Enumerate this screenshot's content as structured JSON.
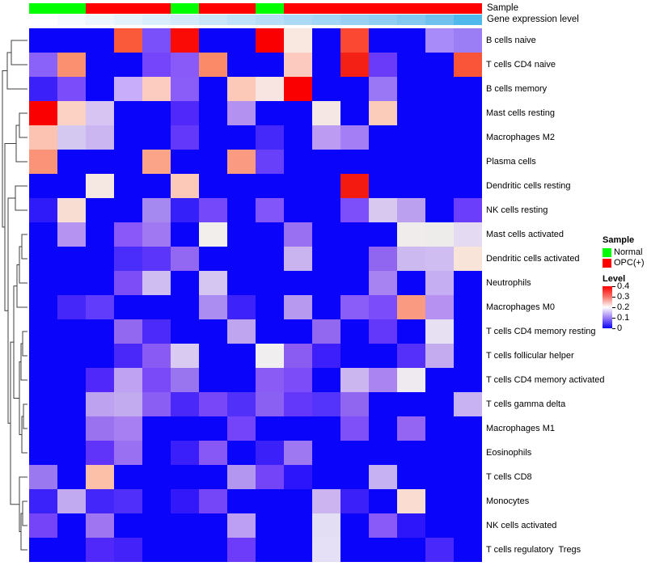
{
  "annotations": {
    "sample_label": "Sample",
    "expression_label": "Gene expression level",
    "sample_colors_by_column": [
      "#00FE00",
      "#00FE00",
      "#FE0000",
      "#FE0000",
      "#FE0000",
      "#00FE00",
      "#FE0000",
      "#FE0000",
      "#00FE00",
      "#FE0000",
      "#FE0000",
      "#FE0000",
      "#FE0000",
      "#FE0000",
      "#FE0000",
      "#FE0000"
    ],
    "expression_colors_by_column": [
      "#FCFEFF",
      "#F5FAFE",
      "#EDF6FD",
      "#E4F2FC",
      "#DBEEFB",
      "#D2EAFA",
      "#C9E6F9",
      "#C0E2F8",
      "#B6DEF7",
      "#ACDAF6",
      "#A3D6F4",
      "#99D1F3",
      "#8FCDF2",
      "#82C8F0",
      "#70C1EE",
      "#4FB9EC"
    ]
  },
  "legend": {
    "sample_title": "Sample",
    "sample_items": [
      {
        "label": "Normal",
        "color": "#00FE00"
      },
      {
        "label": "OPC(+)",
        "color": "#FE0000"
      }
    ],
    "level_title": "Level",
    "level_ticks": [
      "0.4",
      "0.3",
      "0.2",
      "0.1",
      "0"
    ],
    "level_gradient_top_to_bottom": [
      "#FF0000",
      "#F9746A",
      "#FFFFFF",
      "#9B7DF5",
      "#0A04FA"
    ]
  },
  "chart_data": {
    "type": "heatmap",
    "value_name": "Level",
    "value_range": [
      0,
      0.4
    ],
    "colormap": "blue (0) → white (0.2) → red (0.4)",
    "n_columns": 16,
    "column_sample_group": [
      "Normal",
      "Normal",
      "OPC(+)",
      "OPC(+)",
      "OPC(+)",
      "Normal",
      "OPC(+)",
      "OPC(+)",
      "Normal",
      "OPC(+)",
      "OPC(+)",
      "OPC(+)",
      "OPC(+)",
      "OPC(+)",
      "OPC(+)",
      "OPC(+)"
    ],
    "rows": [
      "B cells naive",
      "T cells CD4 naive",
      "B cells memory",
      "Mast cells resting",
      "Macrophages M2",
      "Plasma cells",
      "Dendritic cells resting",
      "NK cells resting",
      "Mast cells activated",
      "Dendritic cells activated",
      "Neutrophils",
      "Macrophages M0",
      "T cells CD4 memory resting",
      "T cells follicular helper",
      "T cells CD4 memory activated",
      "T cells gamma delta",
      "Macrophages M1",
      "Eosinophils",
      "T cells CD8",
      "Monocytes",
      "NK cells activated",
      "T cells regulatory  Tregs"
    ],
    "values": [
      [
        0,
        0,
        0,
        0.33,
        0.1,
        0.39,
        0,
        0,
        0.4,
        0.21,
        0,
        0.33,
        0,
        0,
        0.13,
        0.12
      ],
      [
        0.11,
        0.29,
        0,
        0,
        0.09,
        0.11,
        0.29,
        0,
        0,
        0.25,
        0,
        0.37,
        0.08,
        0,
        0,
        0.32
      ],
      [
        0.04,
        0.09,
        0,
        0.16,
        0.24,
        0.11,
        0,
        0.25,
        0.22,
        0.4,
        0,
        0,
        0.12,
        0,
        0,
        0
      ],
      [
        0.4,
        0.24,
        0.17,
        0,
        0,
        0.06,
        0,
        0.14,
        0,
        0,
        0.21,
        0,
        0.24,
        0,
        0,
        0
      ],
      [
        0.25,
        0.17,
        0.16,
        0,
        0,
        0.08,
        0,
        0,
        0.05,
        0,
        0.15,
        0.13,
        0,
        0,
        0,
        0
      ],
      [
        0.29,
        0,
        0,
        0,
        0.28,
        0,
        0,
        0.28,
        0.08,
        0,
        0,
        0,
        0,
        0,
        0,
        0
      ],
      [
        0,
        0,
        0.21,
        0,
        0,
        0.25,
        0,
        0,
        0,
        0,
        0,
        0.38,
        0,
        0,
        0,
        0
      ],
      [
        0.04,
        0.23,
        0,
        0,
        0.13,
        0.04,
        0.09,
        0,
        0.1,
        0,
        0,
        0.1,
        0.17,
        0.15,
        0,
        0.08
      ],
      [
        0,
        0.14,
        0,
        0.11,
        0.12,
        0,
        0.2,
        0,
        0,
        0.12,
        0,
        0,
        0,
        0.2,
        0.2,
        0.18
      ],
      [
        0,
        0,
        0,
        0.06,
        0.07,
        0.12,
        0,
        0,
        0,
        0.16,
        0,
        0,
        0.11,
        0.16,
        0.16,
        0.22
      ],
      [
        0,
        0,
        0,
        0.1,
        0.16,
        0,
        0.17,
        0,
        0,
        0,
        0,
        0,
        0.13,
        0,
        0.15,
        0
      ],
      [
        0,
        0.05,
        0.08,
        0,
        0,
        0,
        0.14,
        0.05,
        0,
        0.14,
        0,
        0.11,
        0.1,
        0.28,
        0.14,
        0
      ],
      [
        0,
        0,
        0,
        0.12,
        0.06,
        0,
        0,
        0.15,
        0,
        0,
        0.12,
        0,
        0.08,
        0,
        0.19,
        0
      ],
      [
        0,
        0,
        0,
        0.06,
        0.11,
        0.17,
        0,
        0,
        0.2,
        0.11,
        0.05,
        0,
        0,
        0.07,
        0.15,
        0
      ],
      [
        0,
        0,
        0.06,
        0.15,
        0.1,
        0.12,
        0,
        0,
        0.11,
        0.1,
        0,
        0.16,
        0.13,
        0.19,
        0,
        0
      ],
      [
        0,
        0,
        0.15,
        0.15,
        0.11,
        0.06,
        0.09,
        0.06,
        0.11,
        0.08,
        0.07,
        0.11,
        0,
        0,
        0,
        0.16
      ],
      [
        0,
        0,
        0.12,
        0.13,
        0,
        0,
        0,
        0.09,
        0,
        0,
        0,
        0.1,
        0,
        0.12,
        0,
        0
      ],
      [
        0,
        0,
        0.08,
        0.12,
        0,
        0.05,
        0.11,
        0,
        0.05,
        0.12,
        0,
        0,
        0,
        0,
        0,
        0
      ],
      [
        0.12,
        0,
        0.25,
        0,
        0,
        0,
        0,
        0.14,
        0.09,
        0.04,
        0,
        0,
        0.15,
        0,
        0,
        0
      ],
      [
        0.05,
        0.15,
        0.05,
        0.06,
        0,
        0.04,
        0.09,
        0,
        0,
        0,
        0.16,
        0.05,
        0,
        0.23,
        0,
        0
      ],
      [
        0.09,
        0,
        0.13,
        0,
        0,
        0,
        0,
        0.15,
        0,
        0,
        0.19,
        0,
        0.11,
        0.04,
        0,
        0
      ],
      [
        0,
        0,
        0.06,
        0.05,
        0,
        0,
        0,
        0.08,
        0,
        0,
        0.19,
        0,
        0,
        0,
        0.06,
        0
      ]
    ],
    "cell_colors": [
      [
        "#0A04FA",
        "#0A04FA",
        "#0A04FA",
        "#FB5A3A",
        "#7A50FA",
        "#FB0B06",
        "#0A04FA",
        "#0A04FA",
        "#FB0000",
        "#F8E8E0",
        "#0A04FA",
        "#FB4833",
        "#0A04FA",
        "#0A04FA",
        "#A88AF8",
        "#9B7DF5"
      ],
      [
        "#8A62FA",
        "#FA9070",
        "#0A04FA",
        "#0A04FA",
        "#7445FA",
        "#8A5AF8",
        "#FA8A68",
        "#0A04FA",
        "#0A04FA",
        "#FCCABE",
        "#0A04FA",
        "#F52015",
        "#6A3CFA",
        "#0A04FA",
        "#0A04FA",
        "#FA5538"
      ],
      [
        "#3C20FA",
        "#7A4CFA",
        "#0A04FA",
        "#C8AEFA",
        "#FCCCC0",
        "#8A5CF8",
        "#0A04FA",
        "#FCC8B8",
        "#F8E4E0",
        "#FB0000",
        "#0A04FA",
        "#0A04FA",
        "#9A78F5",
        "#0A04FA",
        "#0A04FA",
        "#0A04FA"
      ],
      [
        "#FB0000",
        "#FCD2C4",
        "#D8C4F2",
        "#0A04FA",
        "#0A04FA",
        "#5028FA",
        "#0A04FA",
        "#B291F0",
        "#0A04FA",
        "#0A04FA",
        "#F5E8E4",
        "#0A04FA",
        "#FCCCBA",
        "#0A04FA",
        "#0A04FA",
        "#0A04FA"
      ],
      [
        "#FCC2B2",
        "#D4C8F0",
        "#CCB6F2",
        "#0A04FA",
        "#0A04FA",
        "#6338FA",
        "#0A04FA",
        "#0A04FA",
        "#4528FA",
        "#0A04FA",
        "#BB9CF2",
        "#A37EF5",
        "#0A04FA",
        "#0A04FA",
        "#0A04FA",
        "#0A04FA"
      ],
      [
        "#FA9378",
        "#0A04FA",
        "#0A04FA",
        "#0A04FA",
        "#FCA488",
        "#0A04FA",
        "#0A04FA",
        "#FA9A80",
        "#6940FA",
        "#0A04FA",
        "#0A04FA",
        "#0A04FA",
        "#0A04FA",
        "#0A04FA",
        "#0A04FA",
        "#0A04FA"
      ],
      [
        "#0A04FA",
        "#0A04FA",
        "#F5E8E2",
        "#0A04FA",
        "#0A04FA",
        "#FCC9B8",
        "#0A04FA",
        "#0A04FA",
        "#0A04FA",
        "#0A04FA",
        "#0A04FA",
        "#F51A10",
        "#0A04FA",
        "#0A04FA",
        "#0A04FA",
        "#0A04FA"
      ],
      [
        "#2F1AFA",
        "#F8DDD2",
        "#0A04FA",
        "#0A04FA",
        "#A588F0",
        "#3520FA",
        "#7548FA",
        "#0A04FA",
        "#8255FA",
        "#0A04FA",
        "#0A04FA",
        "#7C4FFA",
        "#D8C8F0",
        "#BBA0F0",
        "#0A04FA",
        "#6A3EFA"
      ],
      [
        "#0A04FA",
        "#B494F0",
        "#0A04FA",
        "#8A58F8",
        "#A078F2",
        "#0A04FA",
        "#F2EEEC",
        "#0A04FA",
        "#0A04FA",
        "#9A70F2",
        "#0A04FA",
        "#0A04FA",
        "#0A04FA",
        "#EFECEB",
        "#EEECEB",
        "#E4DAF2"
      ],
      [
        "#0A04FA",
        "#0A04FA",
        "#0A04FA",
        "#4A2DFA",
        "#5C35FA",
        "#9268F2",
        "#0A04FA",
        "#0A04FA",
        "#0A04FA",
        "#C9B4F0",
        "#0A04FA",
        "#0A04FA",
        "#9065F0",
        "#CCB9F0",
        "#CFBCF0",
        "#F9E4DA"
      ],
      [
        "#0A04FA",
        "#0A04FA",
        "#0A04FA",
        "#7D4EF8",
        "#CFBCF0",
        "#0A04FA",
        "#D4C6F0",
        "#0A04FA",
        "#0A04FA",
        "#0A04FA",
        "#0A04FA",
        "#0A04FA",
        "#A783F2",
        "#0A04FA",
        "#C5AFF2",
        "#0A04FA"
      ],
      [
        "#0A04FA",
        "#4527FA",
        "#613CFA",
        "#0A04FA",
        "#0A04FA",
        "#0A04FA",
        "#AB8CF0",
        "#3D22FA",
        "#0A04FA",
        "#B79AF0",
        "#0A04FA",
        "#8A5CF8",
        "#7A4CFA",
        "#FA9A80",
        "#B691F2",
        "#0A04FA"
      ],
      [
        "#0A04FA",
        "#0A04FA",
        "#0A04FA",
        "#9268F0",
        "#4C2AFA",
        "#0A04FA",
        "#0A04FA",
        "#BFA5F0",
        "#0A04FA",
        "#0A04FA",
        "#9268F0",
        "#0A04FA",
        "#6338FA",
        "#0A04FA",
        "#E6E0F2",
        "#0A04FA"
      ],
      [
        "#0A04FA",
        "#0A04FA",
        "#0A04FA",
        "#4A28FA",
        "#8A5AF5",
        "#D8CAF0",
        "#0A04FA",
        "#0A04FA",
        "#F0EEEE",
        "#8A5CF2",
        "#3C1FFA",
        "#0A04FA",
        "#0A04FA",
        "#5530FA",
        "#C4ABF0",
        "#0A04FA"
      ],
      [
        "#0A04FA",
        "#0A04FA",
        "#5028FA",
        "#C0A2F2",
        "#7A4AF8",
        "#9A75F0",
        "#0A04FA",
        "#0A04FA",
        "#8A5CF5",
        "#7C4CF8",
        "#0A04FA",
        "#CCB6F0",
        "#AA85F2",
        "#EEEAF0",
        "#0A04FA",
        "#0A04FA"
      ],
      [
        "#0A04FA",
        "#0A04FA",
        "#BDA2F0",
        "#C3ABF0",
        "#8A5EF2",
        "#4A28FA",
        "#7747F8",
        "#5130FA",
        "#8A60F2",
        "#6438FA",
        "#5433FA",
        "#9065F0",
        "#0A04FA",
        "#0A04FA",
        "#0A04FA",
        "#C9B2F2"
      ],
      [
        "#0A04FA",
        "#0A04FA",
        "#9A72F0",
        "#A87FF2",
        "#0A04FA",
        "#0A04FA",
        "#0A04FA",
        "#7344FA",
        "#0A04FA",
        "#0A04FA",
        "#0A04FA",
        "#7F50F8",
        "#0A04FA",
        "#9465F2",
        "#0A04FA",
        "#0A04FA"
      ],
      [
        "#0A04FA",
        "#0A04FA",
        "#6134FA",
        "#9A70F2",
        "#0A04FA",
        "#3B1FFA",
        "#8758F5",
        "#0A04FA",
        "#3C20FA",
        "#9E78F0",
        "#0A04FA",
        "#0A04FA",
        "#0A04FA",
        "#0A04FA",
        "#0A04FA",
        "#0A04FA"
      ],
      [
        "#9A78F0",
        "#0A04FA",
        "#FCBFA8",
        "#0A04FA",
        "#0A04FA",
        "#0A04FA",
        "#0A04FA",
        "#B396F0",
        "#7445F8",
        "#2C15FA",
        "#0A04FA",
        "#0A04FA",
        "#C6B1F2",
        "#0A04FA",
        "#0A04FA",
        "#0A04FA"
      ],
      [
        "#3C22FA",
        "#C2AAF0",
        "#4326FA",
        "#512FFA",
        "#0A04FA",
        "#3319FA",
        "#7546F8",
        "#0A04FA",
        "#0A04FA",
        "#0A04FA",
        "#CCB4F0",
        "#3C20FA",
        "#0A04FA",
        "#FADCD0",
        "#0A04FA",
        "#0A04FA"
      ],
      [
        "#7544F8",
        "#0A04FA",
        "#A075F2",
        "#0A04FA",
        "#0A04FA",
        "#0A04FA",
        "#0A04FA",
        "#BC9EF2",
        "#0A04FA",
        "#0A04FA",
        "#E4DEF4",
        "#0A04FA",
        "#8A5AF8",
        "#2D16FA",
        "#0A04FA",
        "#0A04FA"
      ],
      [
        "#0A04FA",
        "#0A04FA",
        "#5028FA",
        "#4322FA",
        "#0A04FA",
        "#0A04FA",
        "#0A04FA",
        "#6C3CFA",
        "#0A04FA",
        "#0A04FA",
        "#E6E0F6",
        "#0A04FA",
        "#0A04FA",
        "#0A04FA",
        "#4828FA",
        "#0A04FA"
      ]
    ]
  },
  "dendrogram": {
    "stroke": "#3F3F3F",
    "paths": [
      "M34 50 H14 V80 H34",
      "M14 65 H9 V110 H34",
      "M34 140 H24 V170 H34",
      "M24 155 H20 V200 H34",
      "M34 230 H19 V260 H34",
      "M34 290 H27 V320 H34",
      "M27 305 H24 V350 H34",
      "M24 327.5 H21 V380 H34",
      "M34 410 H28 V440 H34",
      "M28 425 H26 V470 H34",
      "M34 500 H29 V530 H34",
      "M29 515 H27 V560 H34",
      "M26 447.5 H24 V537.5 H27",
      "M21 353.75 H17 V492.5 H24",
      "M34 620 H28 V650 H34",
      "M28 635 H26 V680 H34",
      "M34 590 H24 V657.5 H26",
      "M17 423.1 H13 V623.75 H24",
      "M19 245 H10 V523.4 H13",
      "M20 177.5 H6 V384.2 H10",
      "M9 87.5 H3 V280.9 H6"
    ]
  }
}
